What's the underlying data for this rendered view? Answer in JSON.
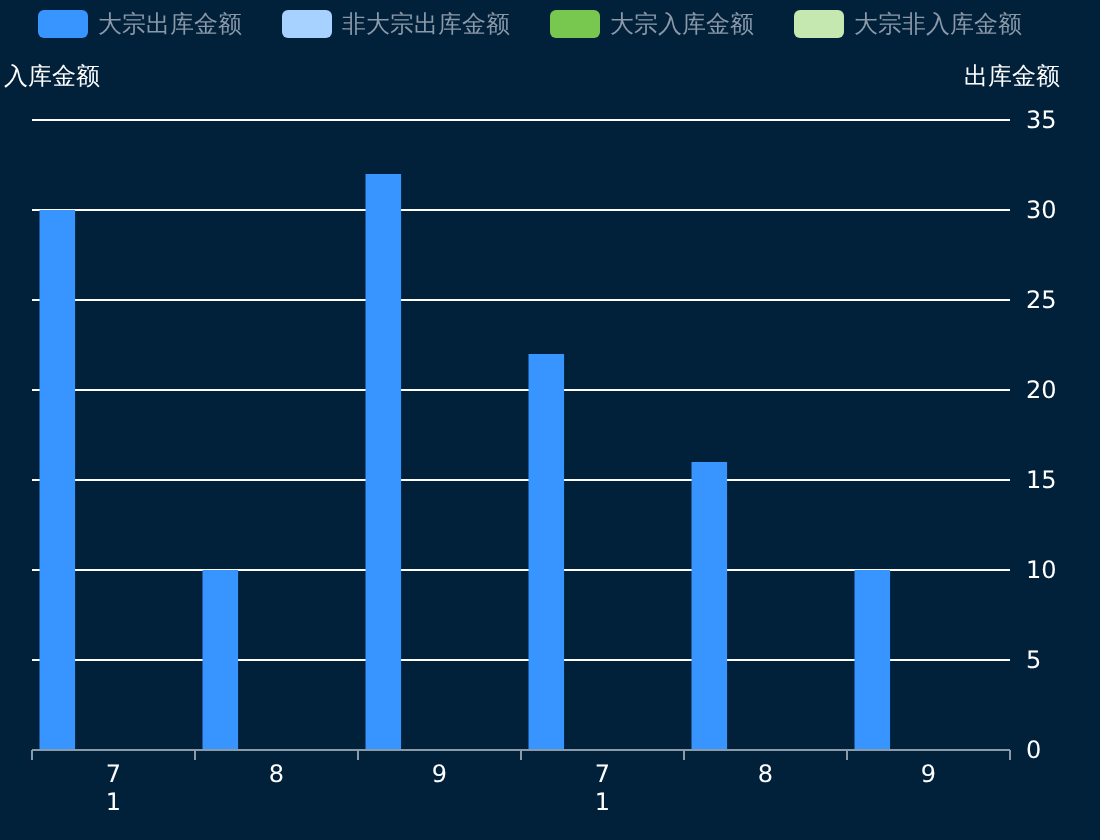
{
  "chart_data": {
    "type": "bar",
    "categories": [
      "7\n1",
      "8",
      "9",
      "7\n1",
      "8",
      "9"
    ],
    "series": [
      {
        "name": "大宗出库金额",
        "color": "#3894ff",
        "axis": "y2",
        "values": [
          30,
          10,
          32,
          22,
          16,
          10
        ]
      },
      {
        "name": "非大宗出库金额",
        "color": "#a7d1ff",
        "axis": "y2",
        "values": [
          null,
          null,
          null,
          null,
          null,
          null
        ]
      },
      {
        "name": "大宗入库金额",
        "color": "#78c850",
        "axis": "y",
        "values": [
          null,
          null,
          null,
          null,
          null,
          null
        ]
      },
      {
        "name": "大宗非入库金额",
        "color": "#c5e8b0",
        "axis": "y",
        "values": [
          null,
          null,
          null,
          null,
          null,
          null
        ]
      }
    ],
    "ylabel": "入库金额",
    "y2label": "出库金额",
    "y2lim": [
      0,
      35
    ],
    "y2ticks": [
      0,
      5,
      10,
      15,
      20,
      25,
      30,
      35
    ],
    "grid": true,
    "legend": "top"
  }
}
